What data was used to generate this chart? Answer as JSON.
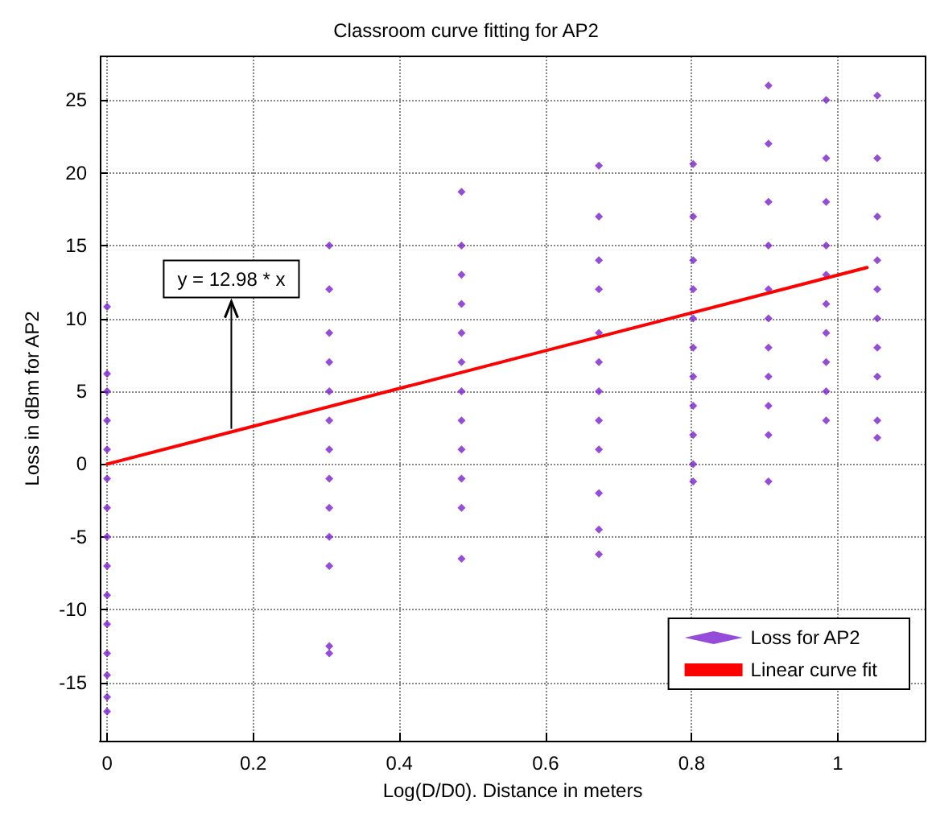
{
  "chart_data": {
    "type": "scatter",
    "title": "Classroom curve fitting for AP2",
    "xlabel": "Log(D/D0). Distance in meters",
    "ylabel": "Loss in dBm for AP2",
    "xlim": [
      -0.01,
      1.12
    ],
    "xticks": [
      0,
      0.2,
      0.4,
      0.6,
      0.8,
      1
    ],
    "ylim": [
      -19,
      28
    ],
    "yticks": [
      -15,
      -10,
      -5,
      0,
      5,
      10,
      15,
      20,
      25
    ],
    "grid": true,
    "legend": "bottom right",
    "annotations": [
      {
        "text": "y = 12.98 * x",
        "x": 0.17,
        "y": 2.2
      }
    ],
    "series": [
      {
        "name": "Loss for AP2",
        "marker": "diamond",
        "color": "#7a1fd0",
        "x": [
          0,
          0,
          0,
          0,
          0,
          0,
          0,
          0,
          0,
          0,
          0,
          0,
          0,
          0,
          0,
          0.304,
          0.304,
          0.304,
          0.304,
          0.304,
          0.304,
          0.304,
          0.304,
          0.304,
          0.304,
          0.304,
          0.304,
          0.304,
          0.485,
          0.485,
          0.485,
          0.485,
          0.485,
          0.485,
          0.485,
          0.485,
          0.485,
          0.485,
          0.485,
          0.485,
          0.673,
          0.673,
          0.673,
          0.673,
          0.673,
          0.673,
          0.673,
          0.673,
          0.673,
          0.673,
          0.673,
          0.673,
          0.802,
          0.802,
          0.802,
          0.802,
          0.802,
          0.802,
          0.802,
          0.802,
          0.802,
          0.802,
          0.802,
          0.905,
          0.905,
          0.905,
          0.905,
          0.905,
          0.905,
          0.905,
          0.905,
          0.905,
          0.905,
          0.905,
          0.984,
          0.984,
          0.984,
          0.984,
          0.984,
          0.984,
          0.984,
          0.984,
          0.984,
          0.984,
          1.054,
          1.054,
          1.054,
          1.054,
          1.054,
          1.054,
          1.054,
          1.054,
          1.054,
          1.054
        ],
        "values": [
          -17,
          -16,
          -14.5,
          -13,
          -11,
          -9,
          -7,
          -5,
          -3,
          -1,
          1,
          3,
          5,
          6.2,
          10.8,
          -13,
          -12.5,
          -7,
          -5,
          -3,
          -1,
          1,
          3,
          5,
          7,
          9,
          12,
          15,
          -6.5,
          -3,
          -1,
          1,
          3,
          5,
          7,
          9,
          11,
          13,
          15,
          18.7,
          -6.2,
          -4.5,
          -2,
          1,
          3,
          5,
          7,
          9,
          12,
          14,
          17,
          20.5,
          -1.2,
          0,
          2,
          4,
          6,
          8,
          10,
          12,
          14,
          17,
          20.6,
          -1.2,
          2,
          4,
          6,
          8,
          10,
          12,
          15,
          18,
          22,
          26,
          3,
          5,
          7,
          9,
          11,
          13,
          15,
          18,
          21,
          25,
          1.8,
          3,
          6,
          8,
          10,
          12,
          14,
          17,
          21,
          25.3
        ]
      },
      {
        "name": "Linear curve fit",
        "type": "line",
        "marker": "none",
        "line_style": "solid",
        "color": "#ff0000",
        "x": [
          0,
          1.04
        ],
        "values": [
          0,
          13.5
        ]
      }
    ]
  }
}
